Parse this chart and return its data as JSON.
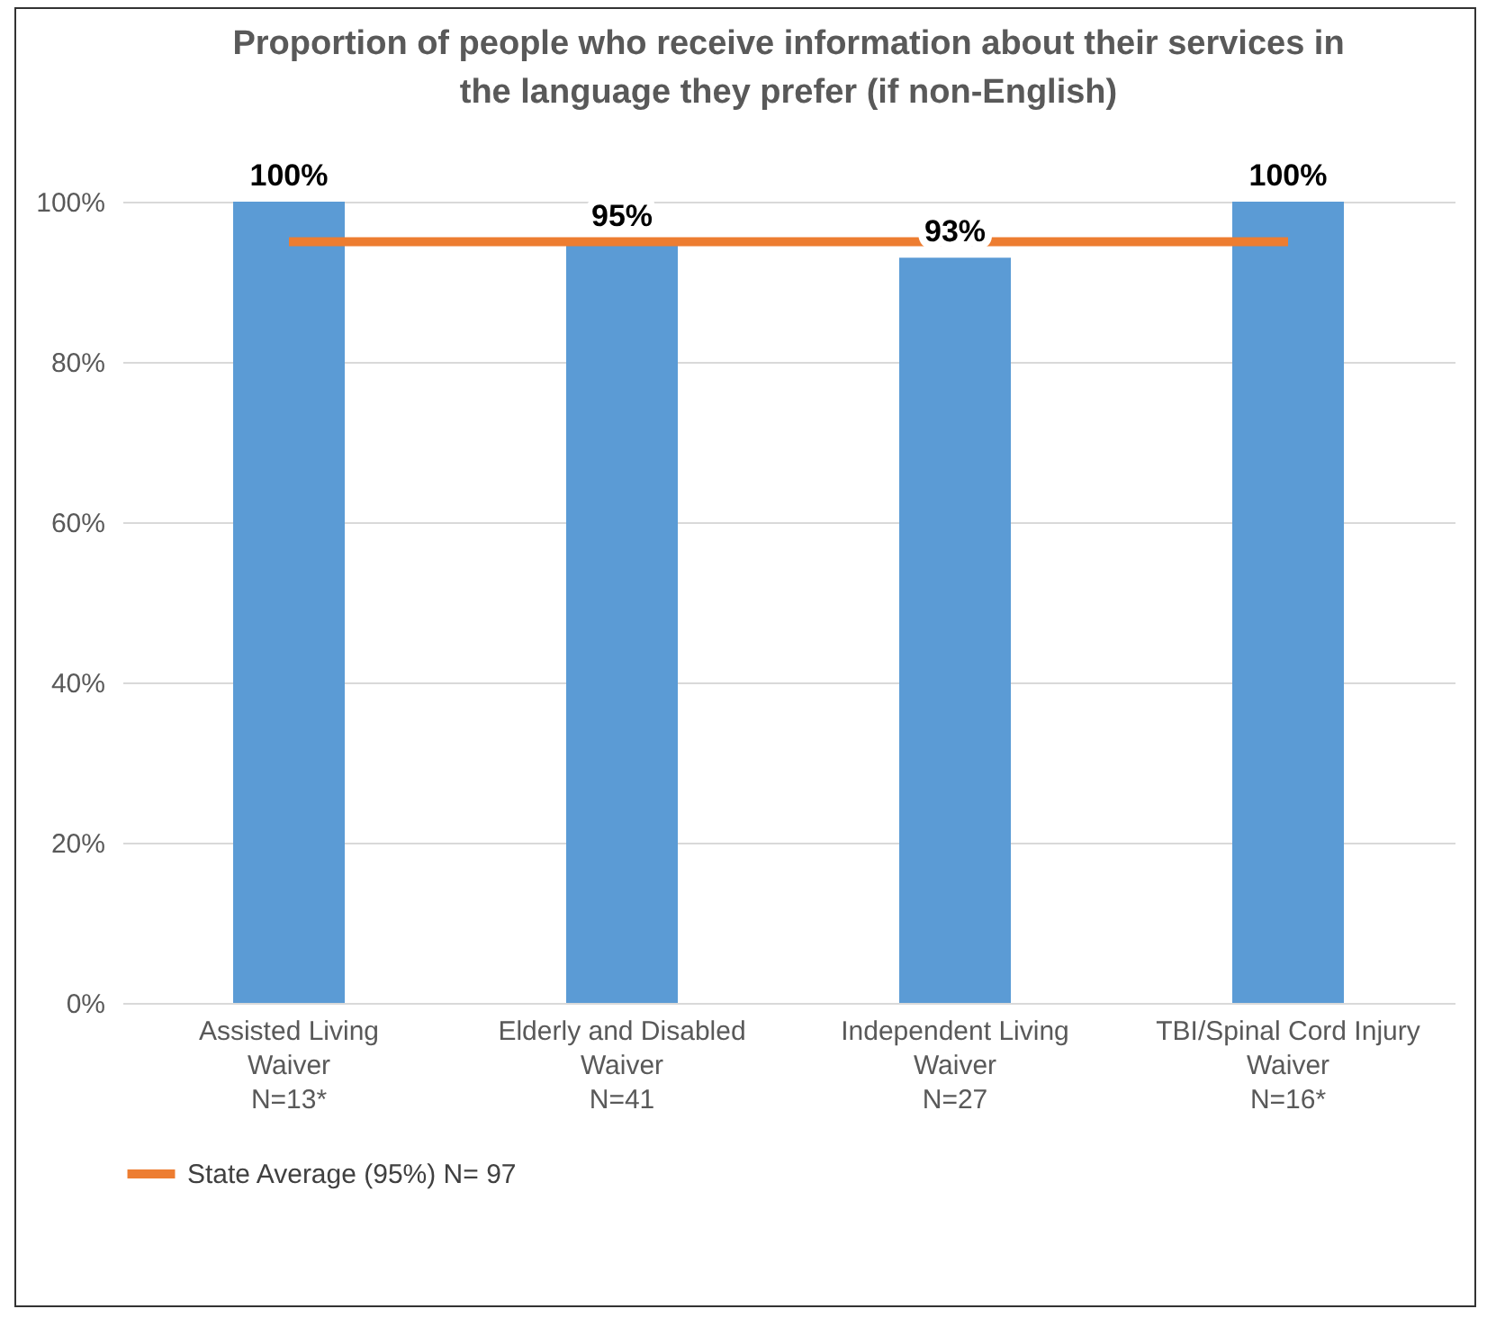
{
  "chart_data": {
    "type": "bar",
    "title": "Proportion of people who receive information about their services in the language they prefer (if non-English)",
    "categories": [
      "Assisted Living\nWaiver\nN=13*",
      "Elderly and Disabled\nWaiver\nN=41",
      "Independent Living\nWaiver\nN=27",
      "TBI/Spinal Cord Injury\nWaiver\nN=16*"
    ],
    "series": [
      {
        "color": "#5b9bd5",
        "values": [
          100,
          95,
          93,
          100
        ],
        "value_labels": [
          "100%",
          "95%",
          "93%",
          "100%"
        ]
      },
      {
        "name": "State Average (95%) N= 97",
        "type": "line",
        "color": "#ed7d31",
        "values": [
          95,
          95,
          95,
          95
        ]
      }
    ],
    "ylim": [
      0,
      100
    ],
    "yticks": [
      {
        "value": 0,
        "label": "0%"
      },
      {
        "value": 20,
        "label": "20%"
      },
      {
        "value": 40,
        "label": "40%"
      },
      {
        "value": 60,
        "label": "60%"
      },
      {
        "value": 80,
        "label": "80%"
      },
      {
        "value": 100,
        "label": "100%"
      }
    ],
    "grid": "y",
    "legend": "bottom"
  }
}
